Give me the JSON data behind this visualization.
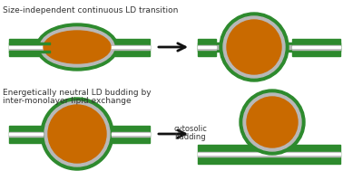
{
  "title_top": "Size-independent continuous LD transition",
  "title_bottom_line1": "Energetically neutral LD budding by",
  "title_bottom_line2": "inter-monolayer lipid exchange",
  "label_cytosolic": "cytosolic",
  "label_budding": "budding",
  "bg_color": "#ffffff",
  "orange_core": "#c96a00",
  "orange_dark": "#a85500",
  "green_membrane": "#2d8a2d",
  "gray_inner": "#b8b8b8",
  "text_color": "#333333",
  "arrow_color": "#111111"
}
